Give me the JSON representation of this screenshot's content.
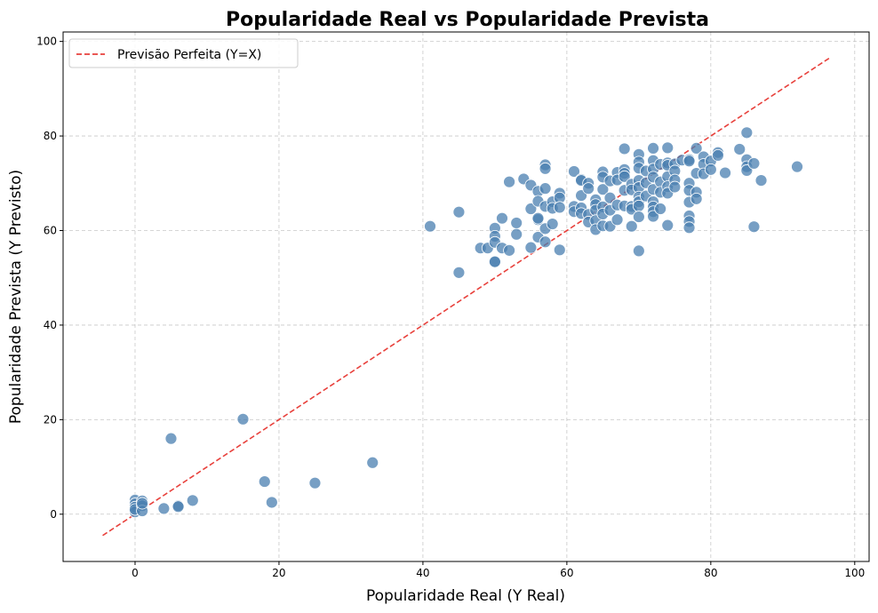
{
  "chart_data": {
    "type": "scatter",
    "title": "Popularidade Real vs Popularidade Prevista",
    "xlabel": "Popularidade Real (Y Real)",
    "ylabel": "Popularidade Prevista (Y Previsto)",
    "xlim": [
      -10,
      102
    ],
    "ylim": [
      -10,
      102
    ],
    "xticks": [
      0,
      20,
      40,
      60,
      80,
      100
    ],
    "yticks": [
      0,
      20,
      40,
      60,
      80,
      100
    ],
    "grid": true,
    "legend_position": "top-left",
    "point_color": "#4a7fb0",
    "reference_line": {
      "name": "Previsão Perfeita (Y=X)",
      "color": "#e8413c",
      "style": "dashed",
      "x": [
        -4.5,
        96.5
      ],
      "y": [
        -4.5,
        96.5
      ]
    },
    "points": [
      [
        0,
        3.0
      ],
      [
        0,
        2.2
      ],
      [
        0,
        1.5
      ],
      [
        0,
        0.5
      ],
      [
        0,
        1.0
      ],
      [
        1,
        2.8
      ],
      [
        1,
        1.8
      ],
      [
        1,
        0.7
      ],
      [
        1,
        2.3
      ],
      [
        4,
        1.2
      ],
      [
        6,
        1.8
      ],
      [
        6,
        1.6
      ],
      [
        8,
        2.9
      ],
      [
        5,
        16.0
      ],
      [
        15,
        20.1
      ],
      [
        18,
        6.9
      ],
      [
        19,
        2.5
      ],
      [
        25,
        6.6
      ],
      [
        33,
        10.9
      ],
      [
        41,
        60.9
      ],
      [
        45,
        63.9
      ],
      [
        45,
        51.1
      ],
      [
        48,
        56.3
      ],
      [
        49,
        56.3
      ],
      [
        50,
        60.5
      ],
      [
        50,
        58.8
      ],
      [
        50,
        57.5
      ],
      [
        50,
        53.3
      ],
      [
        50,
        53.4
      ],
      [
        51,
        62.6
      ],
      [
        51,
        56.3
      ],
      [
        52,
        70.3
      ],
      [
        52,
        55.8
      ],
      [
        53,
        61.6
      ],
      [
        53,
        59.2
      ],
      [
        54,
        70.9
      ],
      [
        55,
        69.6
      ],
      [
        55,
        64.6
      ],
      [
        55,
        56.4
      ],
      [
        56,
        68.3
      ],
      [
        56,
        66.2
      ],
      [
        56,
        62.3
      ],
      [
        56,
        62.6
      ],
      [
        56,
        58.6
      ],
      [
        57,
        73.9
      ],
      [
        57,
        73.1
      ],
      [
        57,
        68.9
      ],
      [
        57,
        65.1
      ],
      [
        57,
        60.4
      ],
      [
        57,
        57.6
      ],
      [
        58,
        66.1
      ],
      [
        58,
        64.7
      ],
      [
        58,
        61.4
      ],
      [
        59,
        67.9
      ],
      [
        59,
        66.9
      ],
      [
        59,
        64.9
      ],
      [
        59,
        55.9
      ],
      [
        61,
        72.5
      ],
      [
        61,
        65.1
      ],
      [
        61,
        64.0
      ],
      [
        62,
        70.8
      ],
      [
        62,
        70.6
      ],
      [
        62,
        67.4
      ],
      [
        62,
        64.8
      ],
      [
        62,
        63.6
      ],
      [
        63,
        70.0
      ],
      [
        63,
        68.9
      ],
      [
        63,
        63.4
      ],
      [
        63,
        61.8
      ],
      [
        64,
        66.5
      ],
      [
        64,
        65.5
      ],
      [
        64,
        64.3
      ],
      [
        64,
        62.1
      ],
      [
        64,
        60.2
      ],
      [
        65,
        72.4
      ],
      [
        65,
        71.3
      ],
      [
        65,
        68.7
      ],
      [
        65,
        65.0
      ],
      [
        65,
        63.5
      ],
      [
        65,
        61.0
      ],
      [
        66,
        70.5
      ],
      [
        66,
        66.9
      ],
      [
        66,
        64.3
      ],
      [
        66,
        60.9
      ],
      [
        67,
        72.3
      ],
      [
        67,
        70.7
      ],
      [
        67,
        65.4
      ],
      [
        67,
        62.3
      ],
      [
        68,
        77.3
      ],
      [
        68,
        72.9
      ],
      [
        68,
        72.1
      ],
      [
        68,
        71.4
      ],
      [
        68,
        68.5
      ],
      [
        68,
        65.2
      ],
      [
        69,
        69.8
      ],
      [
        69,
        68.6
      ],
      [
        69,
        65.1
      ],
      [
        69,
        64.5
      ],
      [
        69,
        60.9
      ],
      [
        70,
        76.1
      ],
      [
        70,
        74.5
      ],
      [
        70,
        73.2
      ],
      [
        70,
        70.6
      ],
      [
        70,
        69.1
      ],
      [
        70,
        67.1
      ],
      [
        70,
        66.1
      ],
      [
        70,
        65.2
      ],
      [
        70,
        62.9
      ],
      [
        70,
        55.7
      ],
      [
        71,
        72.6
      ],
      [
        71,
        70.1
      ],
      [
        71,
        67.3
      ],
      [
        72,
        77.4
      ],
      [
        72,
        74.8
      ],
      [
        72,
        73.0
      ],
      [
        72,
        71.3
      ],
      [
        72,
        68.7
      ],
      [
        72,
        66.1
      ],
      [
        72,
        65.0
      ],
      [
        72,
        64.0
      ],
      [
        72,
        63.0
      ],
      [
        73,
        74.0
      ],
      [
        73,
        70.3
      ],
      [
        73,
        68.1
      ],
      [
        73,
        64.6
      ],
      [
        74,
        77.5
      ],
      [
        74,
        74.3
      ],
      [
        74,
        73.8
      ],
      [
        74,
        71.4
      ],
      [
        74,
        69.3
      ],
      [
        74,
        67.9
      ],
      [
        74,
        61.1
      ],
      [
        75,
        74.1
      ],
      [
        75,
        72.6
      ],
      [
        75,
        70.7
      ],
      [
        75,
        69.2
      ],
      [
        76,
        74.9
      ],
      [
        77,
        75.0
      ],
      [
        77,
        74.7
      ],
      [
        77,
        70.0
      ],
      [
        77,
        68.5
      ],
      [
        77,
        66.0
      ],
      [
        77,
        63.1
      ],
      [
        77,
        61.9
      ],
      [
        77,
        60.6
      ],
      [
        78,
        77.4
      ],
      [
        78,
        72.1
      ],
      [
        78,
        68.1
      ],
      [
        78,
        66.7
      ],
      [
        79,
        75.6
      ],
      [
        79,
        74.0
      ],
      [
        79,
        72.0
      ],
      [
        80,
        74.7
      ],
      [
        80,
        72.9
      ],
      [
        81,
        76.5
      ],
      [
        81,
        75.9
      ],
      [
        82,
        72.2
      ],
      [
        84,
        77.2
      ],
      [
        85,
        80.7
      ],
      [
        85,
        75.0
      ],
      [
        85,
        73.5
      ],
      [
        85,
        72.7
      ],
      [
        86,
        74.2
      ],
      [
        86,
        60.8
      ],
      [
        87,
        70.6
      ],
      [
        92,
        73.5
      ]
    ]
  }
}
